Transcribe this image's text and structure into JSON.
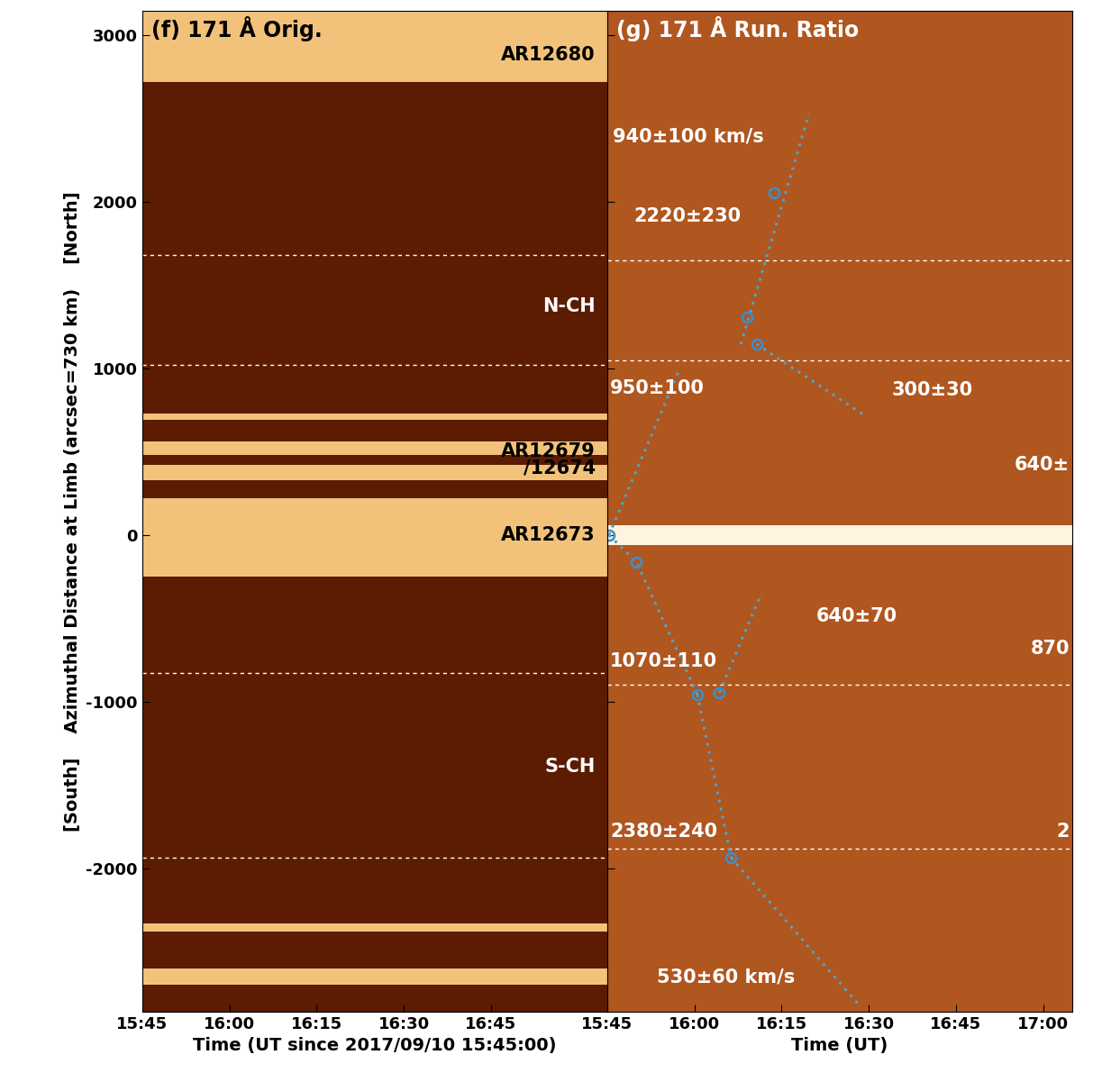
{
  "chart_data": [
    {
      "type": "time_distance",
      "title": "(f) 171 Å Orig.",
      "xlabel": "Time (UT since 2017/09/10 15:45:00)",
      "ylabel": "[South]    Azimuthal Distance at Limb (arcsec=730 km)    [North]",
      "color": "#5c1c02",
      "xlim": [
        0,
        80
      ],
      "ylim": [
        -2860,
        3145
      ],
      "xticks": [
        {
          "value": 0,
          "label": "15:45"
        },
        {
          "value": 15,
          "label": "16:00"
        },
        {
          "value": 30,
          "label": "16:15"
        },
        {
          "value": 45,
          "label": "16:30"
        },
        {
          "value": 60,
          "label": "16:45"
        }
      ],
      "yticks": [
        -2000,
        -1000,
        0,
        1000,
        2000,
        3000
      ],
      "tick_labels": true,
      "reference_lines": [
        1680,
        1020,
        -830,
        -1935
      ],
      "bright_bands": [
        [
          2720,
          3145
        ],
        [
          690,
          730
        ],
        [
          480,
          560
        ],
        [
          330,
          420
        ],
        [
          -250,
          220
        ],
        [
          -2380,
          -2330
        ],
        [
          -2700,
          -2600
        ]
      ],
      "annotations": [
        {
          "text": "AR12680",
          "x": 78,
          "y": 2880
        },
        {
          "text": "N-CH",
          "x": 78,
          "y": 1370
        },
        {
          "text": "AR12679\n/12674",
          "x": 78,
          "y": 450
        },
        {
          "text": "AR12673",
          "x": 78,
          "y": 0
        },
        {
          "text": "S-CH",
          "x": 78,
          "y": -1390
        }
      ]
    },
    {
      "type": "time_distance",
      "title": "(g) 171 Å Run. Ratio",
      "xlabel": "Time (UT)",
      "color": "#b0561f",
      "xlim": [
        0,
        80
      ],
      "ylim": [
        -2860,
        3145
      ],
      "xticks": [
        {
          "value": 0,
          "label": "15:45"
        },
        {
          "value": 15,
          "label": "16:00"
        },
        {
          "value": 30,
          "label": "16:15"
        },
        {
          "value": 45,
          "label": "16:30"
        },
        {
          "value": 60,
          "label": "16:45"
        },
        {
          "value": 75,
          "label": "17:00"
        }
      ],
      "yticks": [
        -2000,
        -1000,
        0,
        1000,
        2000,
        3000
      ],
      "tick_labels": "x",
      "reference_lines": [
        1650,
        1050,
        -898,
        -1882
      ],
      "bright_bands": [
        [
          -60,
          60
        ]
      ],
      "fits": [
        {
          "t": [
            0.3,
            12.5
          ],
          "y": [
            0,
            1000
          ]
        },
        {
          "t": [
            23,
            34.7
          ],
          "y": [
            1145,
            2527
          ]
        },
        {
          "t": [
            25.7,
            43.9
          ],
          "y": [
            1145,
            726
          ]
        },
        {
          "t": [
            0.3,
            5,
            15.5
          ],
          "y": [
            0,
            -161,
            -957
          ]
        },
        {
          "t": [
            15.5,
            21.3
          ],
          "y": [
            -957,
            -1935
          ]
        },
        {
          "t": [
            21.3,
            43.4
          ],
          "y": [
            -1935,
            -2823
          ]
        },
        {
          "t": [
            19.3,
            26.5
          ],
          "y": [
            -946,
            -350
          ]
        }
      ],
      "points": {
        "t": [
          0.3,
          5,
          15.5,
          19.3,
          21.3,
          24,
          25.7,
          28.7
        ],
        "y": [
          0,
          -161,
          -957,
          -946,
          -1935,
          1306,
          1145,
          2054
        ]
      },
      "annotations": [
        {
          "text": "940±100 km/s",
          "x": 1,
          "y": 2390
        },
        {
          "text": "2220±230",
          "x": 4.5,
          "y": 1915
        },
        {
          "text": "950±100",
          "x": 0.5,
          "y": 880
        },
        {
          "text": "300±30",
          "x": 49,
          "y": 870
        },
        {
          "text": "640±",
          "x": 79.5,
          "y": 420
        },
        {
          "text": "640±70",
          "x": 36,
          "y": -490
        },
        {
          "text": "1070±110",
          "x": 0.5,
          "y": -760
        },
        {
          "text": "870",
          "x": 79.5,
          "y": -680
        },
        {
          "text": "2380±240",
          "x": 0.5,
          "y": -1780
        },
        {
          "text": "2",
          "x": 79.5,
          "y": -1780
        },
        {
          "text": "530±60 km/s",
          "x": 8.5,
          "y": -2650
        }
      ]
    }
  ]
}
